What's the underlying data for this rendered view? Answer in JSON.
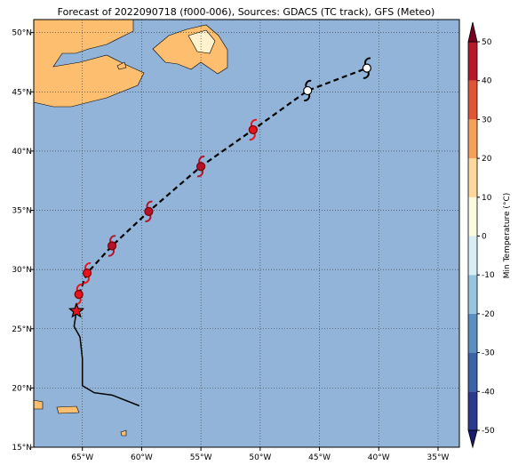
{
  "chart_data": {
    "type": "map",
    "title": "Forecast of 2022090718 (f000-006), Sources: GDACS (TC track), GFS (Meteo)",
    "xlim": [
      -69.1,
      -33.2
    ],
    "ylim": [
      15,
      51.1
    ],
    "xticks": [
      {
        "value": -65,
        "label": "65°W"
      },
      {
        "value": -60,
        "label": "60°W"
      },
      {
        "value": -55,
        "label": "55°W"
      },
      {
        "value": -50,
        "label": "50°W"
      },
      {
        "value": -45,
        "label": "45°W"
      },
      {
        "value": -40,
        "label": "40°W"
      },
      {
        "value": -35,
        "label": "35°W"
      }
    ],
    "yticks": [
      {
        "value": 15,
        "label": "15°N"
      },
      {
        "value": 20,
        "label": "20°N"
      },
      {
        "value": 25,
        "label": "25°N"
      },
      {
        "value": 30,
        "label": "30°N"
      },
      {
        "value": 35,
        "label": "35°N"
      },
      {
        "value": 40,
        "label": "40°N"
      },
      {
        "value": 45,
        "label": "45°N"
      },
      {
        "value": 50,
        "label": "50°N"
      }
    ],
    "grid": true,
    "past_track": {
      "x": [
        -65.5,
        -65.7,
        -65.2,
        -65.0,
        -65.0,
        -64.0,
        -62.5,
        -60.2
      ],
      "y": [
        26.5,
        25.2,
        24.3,
        22.5,
        20.2,
        19.6,
        19.4,
        18.5
      ]
    },
    "current_position": {
      "x": -65.5,
      "y": 26.5
    },
    "forecast": {
      "x": [
        -65.3,
        -64.6,
        -62.5,
        -59.4,
        -55.0,
        -50.6,
        -46.0,
        -41.0
      ],
      "y": [
        27.9,
        29.7,
        32.0,
        34.9,
        38.7,
        41.8,
        45.1,
        47.0
      ],
      "colors": [
        "#e8141c",
        "#e8141c",
        "#b5122a",
        "#b5122a",
        "#b5122a",
        "#e8141c",
        "#ffffff",
        "#ffffff"
      ]
    },
    "colorbar": {
      "label": "Min Temperature (°C)",
      "ticks": [
        -50,
        -40,
        -30,
        -20,
        -10,
        0,
        10,
        20,
        30,
        40,
        50
      ],
      "colors": [
        "#2b3a8f",
        "#3a63a8",
        "#5b8fc0",
        "#97c4de",
        "#d8eef5",
        "#fbfbe0",
        "#fdd89a",
        "#f6a05a",
        "#e05535",
        "#b5192a"
      ],
      "under": "#1a1a6e",
      "over": "#7a0020"
    }
  }
}
